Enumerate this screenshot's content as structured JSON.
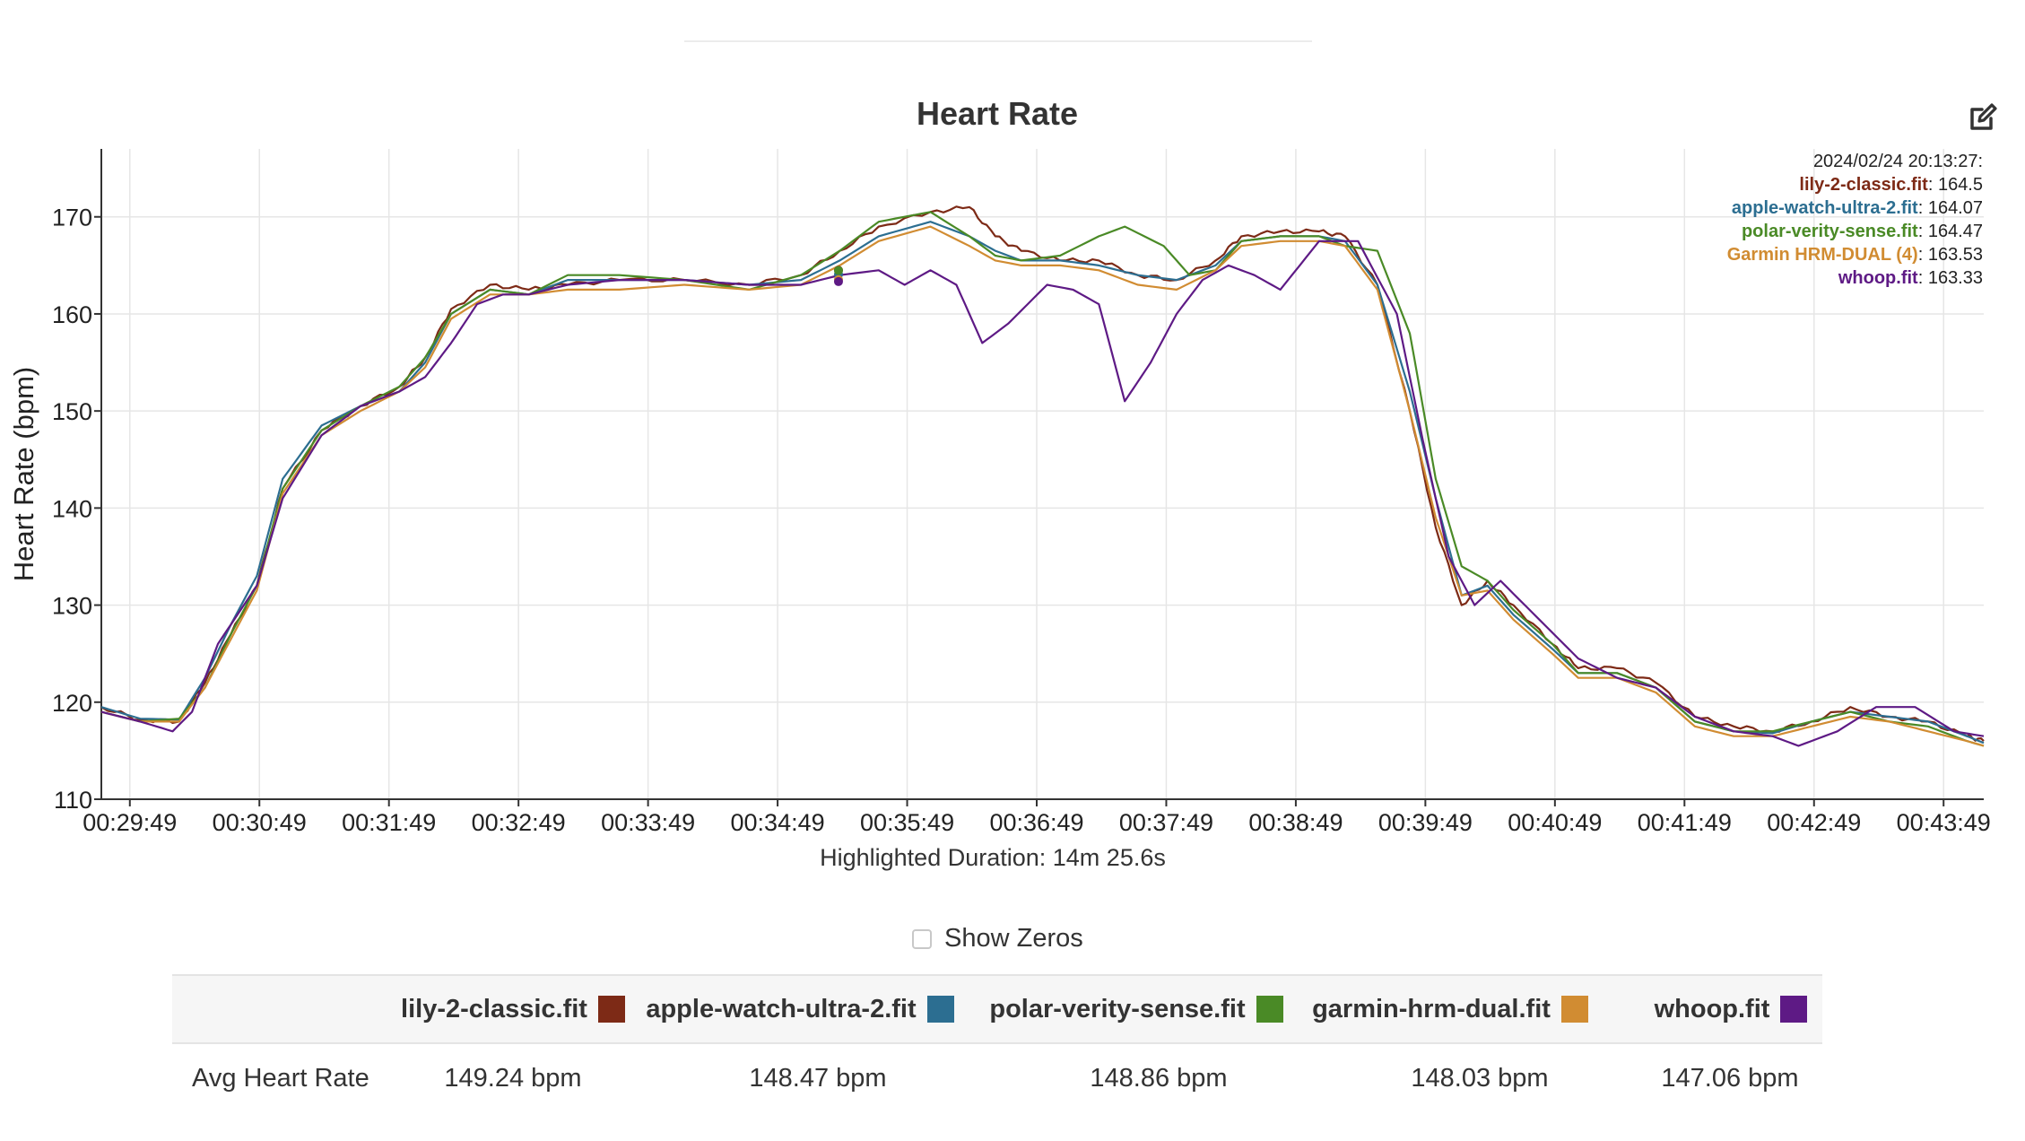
{
  "toolbar": {
    "edit_icon": "edit-icon"
  },
  "chart_data": {
    "type": "line",
    "title": "Heart Rate",
    "ylabel": "Heart Rate (bpm)",
    "xlabel": "",
    "x_tick_labels": [
      "00:29:49",
      "00:30:49",
      "00:31:49",
      "00:32:49",
      "00:33:49",
      "00:34:49",
      "00:35:49",
      "00:36:49",
      "00:37:49",
      "00:38:49",
      "00:39:49",
      "00:40:49",
      "00:41:49",
      "00:42:49",
      "00:43:49"
    ],
    "x_ticks_min": [
      29.82,
      30.82,
      31.82,
      32.82,
      33.82,
      34.82,
      35.82,
      36.82,
      37.82,
      38.82,
      39.82,
      40.82,
      41.82,
      42.82,
      43.82
    ],
    "xlim_min": [
      29.6,
      44.13
    ],
    "ylim": [
      110,
      177
    ],
    "y_ticks": [
      110,
      120,
      130,
      140,
      150,
      160,
      170
    ],
    "grid": true,
    "legend_position": "bottom",
    "tooltip": {
      "timestamp": "2024/02/24 20:13:27:",
      "entries": [
        {
          "name": "lily-2-classic.fit",
          "value": "164.5",
          "color": "#7d2a16"
        },
        {
          "name": "apple-watch-ultra-2.fit",
          "value": "164.07",
          "color": "#2c6e91"
        },
        {
          "name": "polar-verity-sense.fit",
          "value": "164.47",
          "color": "#4a8a26"
        },
        {
          "name": "Garmin HRM-DUAL (4)",
          "value": "163.53",
          "color": "#d18c32"
        },
        {
          "name": "whoop.fit",
          "value": "163.33",
          "color": "#5e1a85"
        }
      ]
    },
    "highlight_x_min": 35.29,
    "footnote": "Highlighted Duration: 14m 25.6s",
    "series": [
      {
        "name": "lily-2-classic.fit",
        "color": "#7d2a16",
        "jitter": 0.6,
        "offset": 0.5,
        "x": [
          29.6,
          29.9,
          30.2,
          30.4,
          30.6,
          30.8,
          31.0,
          31.3,
          31.6,
          31.9,
          32.1,
          32.3,
          32.6,
          32.9,
          33.2,
          33.6,
          34.1,
          34.6,
          35.0,
          35.3,
          35.6,
          36.0,
          36.3,
          36.5,
          36.7,
          37.0,
          37.3,
          37.6,
          37.9,
          38.2,
          38.4,
          38.7,
          39.0,
          39.2,
          39.45,
          39.7,
          39.9,
          40.1,
          40.3,
          40.5,
          40.8,
          41.0,
          41.3,
          41.6,
          41.9,
          42.2,
          42.5,
          42.8,
          43.1,
          43.4,
          43.7,
          44.0,
          44.13
        ],
        "y": [
          119.5,
          118.2,
          118.0,
          122.0,
          127.0,
          132.0,
          142.0,
          148.0,
          150.5,
          152.5,
          155.5,
          160.5,
          163.0,
          162.5,
          163.0,
          163.5,
          163.5,
          163.0,
          164.0,
          166.5,
          169.0,
          170.5,
          171.0,
          168.0,
          166.5,
          165.5,
          165.5,
          164.0,
          163.5,
          165.5,
          168.0,
          168.5,
          168.5,
          168.0,
          163.0,
          150.0,
          138.0,
          130.0,
          132.5,
          130.0,
          126.0,
          123.5,
          123.5,
          122.0,
          118.5,
          117.5,
          117.0,
          118.0,
          119.5,
          118.5,
          118.0,
          116.5,
          116.0
        ]
      },
      {
        "name": "apple-watch-ultra-2.fit",
        "color": "#2c6e91",
        "jitter": 0.0,
        "offset": 0.0,
        "x": [
          29.6,
          29.9,
          30.2,
          30.4,
          30.6,
          30.8,
          31.0,
          31.3,
          31.6,
          31.9,
          32.1,
          32.3,
          32.6,
          32.9,
          33.2,
          33.6,
          34.1,
          34.6,
          35.0,
          35.3,
          35.6,
          36.0,
          36.3,
          36.5,
          36.7,
          37.0,
          37.3,
          37.6,
          37.9,
          38.2,
          38.4,
          38.7,
          39.0,
          39.2,
          39.45,
          39.7,
          39.9,
          40.1,
          40.3,
          40.5,
          40.8,
          41.0,
          41.3,
          41.6,
          41.9,
          42.2,
          42.5,
          42.8,
          43.1,
          43.4,
          43.7,
          44.0,
          44.13
        ],
        "y": [
          119.5,
          118.3,
          118.2,
          122.5,
          128.0,
          133.0,
          143.0,
          148.5,
          150.5,
          152.0,
          155.0,
          160.0,
          162.5,
          162.0,
          163.5,
          163.5,
          163.5,
          163.0,
          163.5,
          165.5,
          168.0,
          169.5,
          168.0,
          166.5,
          165.5,
          165.5,
          165.0,
          164.0,
          163.5,
          165.0,
          167.5,
          168.0,
          168.0,
          167.5,
          163.0,
          152.0,
          141.0,
          131.0,
          132.0,
          129.0,
          125.5,
          123.0,
          123.0,
          121.5,
          118.0,
          117.0,
          116.8,
          118.0,
          119.0,
          118.5,
          118.0,
          116.5,
          115.8
        ]
      },
      {
        "name": "polar-verity-sense.fit",
        "color": "#4a8a26",
        "jitter": 0.0,
        "offset": 0.0,
        "x": [
          29.6,
          29.9,
          30.2,
          30.4,
          30.6,
          30.8,
          31.0,
          31.3,
          31.6,
          31.9,
          32.1,
          32.3,
          32.6,
          32.9,
          33.2,
          33.6,
          34.1,
          34.6,
          35.0,
          35.3,
          35.6,
          36.0,
          36.3,
          36.5,
          36.7,
          37.0,
          37.3,
          37.5,
          37.8,
          38.0,
          38.2,
          38.4,
          38.7,
          39.0,
          39.2,
          39.45,
          39.7,
          39.9,
          40.1,
          40.3,
          40.5,
          40.8,
          41.0,
          41.3,
          41.6,
          41.9,
          42.2,
          42.5,
          42.8,
          43.1,
          43.4,
          43.7,
          44.0,
          44.13
        ],
        "y": [
          119.0,
          118.0,
          118.3,
          121.5,
          127.0,
          132.0,
          142.0,
          148.0,
          150.5,
          152.5,
          155.5,
          160.0,
          162.5,
          162.0,
          164.0,
          164.0,
          163.5,
          162.5,
          164.0,
          166.5,
          169.5,
          170.5,
          168.0,
          166.0,
          165.5,
          166.0,
          168.0,
          169.0,
          167.0,
          164.0,
          164.5,
          167.5,
          168.0,
          168.0,
          167.0,
          166.5,
          158.0,
          143.0,
          134.0,
          132.5,
          129.5,
          126.0,
          123.0,
          123.0,
          121.5,
          118.0,
          117.0,
          117.0,
          118.0,
          119.0,
          118.0,
          117.5,
          116.0,
          115.5
        ]
      },
      {
        "name": "garmin-hrm-dual.fit",
        "color": "#d18c32",
        "jitter": 0.0,
        "offset": 0.0,
        "x": [
          29.6,
          29.9,
          30.2,
          30.4,
          30.6,
          30.8,
          31.0,
          31.3,
          31.6,
          31.9,
          32.1,
          32.3,
          32.6,
          32.9,
          33.2,
          33.6,
          34.1,
          34.6,
          35.0,
          35.3,
          35.6,
          36.0,
          36.3,
          36.5,
          36.7,
          37.0,
          37.3,
          37.6,
          37.9,
          38.2,
          38.4,
          38.7,
          39.0,
          39.2,
          39.45,
          39.7,
          39.9,
          40.1,
          40.3,
          40.5,
          40.8,
          41.0,
          41.3,
          41.6,
          41.9,
          42.2,
          42.5,
          42.8,
          43.1,
          43.4,
          43.7,
          44.0,
          44.13
        ],
        "y": [
          119.0,
          118.0,
          118.0,
          121.5,
          126.5,
          131.5,
          141.5,
          147.5,
          150.0,
          152.0,
          154.5,
          159.5,
          162.0,
          162.0,
          162.5,
          162.5,
          163.0,
          162.5,
          163.0,
          165.0,
          167.5,
          169.0,
          167.0,
          165.5,
          165.0,
          165.0,
          164.5,
          163.0,
          162.5,
          164.5,
          167.0,
          167.5,
          167.5,
          167.0,
          162.5,
          150.0,
          139.0,
          131.0,
          131.5,
          128.5,
          125.0,
          122.5,
          122.5,
          121.0,
          117.5,
          116.5,
          116.5,
          117.5,
          118.5,
          118.0,
          117.0,
          116.0,
          115.5
        ]
      },
      {
        "name": "whoop.fit",
        "color": "#5e1a85",
        "jitter": 0.0,
        "offset": 0.0,
        "x": [
          29.6,
          29.9,
          30.15,
          30.3,
          30.5,
          30.8,
          31.0,
          31.3,
          31.6,
          31.9,
          32.1,
          32.3,
          32.5,
          32.7,
          32.9,
          33.2,
          33.6,
          34.1,
          34.6,
          35.0,
          35.3,
          35.6,
          35.8,
          36.0,
          36.2,
          36.4,
          36.6,
          36.9,
          37.1,
          37.3,
          37.5,
          37.7,
          37.9,
          38.1,
          38.3,
          38.5,
          38.7,
          39.0,
          39.3,
          39.6,
          39.8,
          40.0,
          40.2,
          40.4,
          40.7,
          41.0,
          41.3,
          41.6,
          41.9,
          42.2,
          42.5,
          42.7,
          43.0,
          43.3,
          43.6,
          43.9,
          44.13
        ],
        "y": [
          119.0,
          118.0,
          117.0,
          119.0,
          126.0,
          132.0,
          141.0,
          147.5,
          150.5,
          152.0,
          153.5,
          157.0,
          161.0,
          162.0,
          162.0,
          163.0,
          163.5,
          163.5,
          163.0,
          163.0,
          164.0,
          164.5,
          163.0,
          164.5,
          163.0,
          157.0,
          159.0,
          163.0,
          162.5,
          161.0,
          151.0,
          155.0,
          160.0,
          163.5,
          165.0,
          164.0,
          162.5,
          167.5,
          167.5,
          160.0,
          147.0,
          135.0,
          130.0,
          132.5,
          128.5,
          124.5,
          122.5,
          121.5,
          118.5,
          117.0,
          116.5,
          115.5,
          117.0,
          119.5,
          119.5,
          117.0,
          116.5
        ]
      }
    ]
  },
  "stats_table": {
    "row_label": "Avg Heart Rate",
    "columns": [
      {
        "name": "lily-2-classic.fit",
        "color": "#7d2a16",
        "value": "149.24 bpm"
      },
      {
        "name": "apple-watch-ultra-2.fit",
        "color": "#2c6e91",
        "value": "148.47 bpm"
      },
      {
        "name": "polar-verity-sense.fit",
        "color": "#4a8a26",
        "value": "148.86 bpm"
      },
      {
        "name": "garmin-hrm-dual.fit",
        "color": "#d18c32",
        "value": "148.03 bpm"
      },
      {
        "name": "whoop.fit",
        "color": "#5e1a85",
        "value": "147.06 bpm"
      }
    ]
  },
  "show_zeros": {
    "label": "Show Zeros",
    "checked": false
  }
}
